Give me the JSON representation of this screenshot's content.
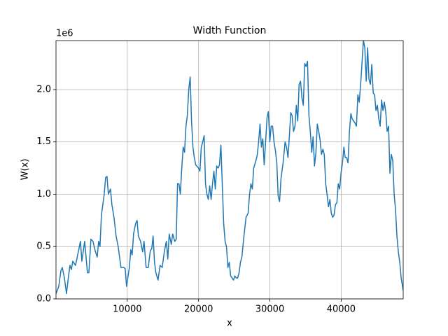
{
  "chart_data": {
    "type": "line",
    "title": "Width Function",
    "x_label": "x",
    "y_label": "W(x)",
    "y_offset_label": "1e6",
    "x": [
      0,
      390,
      690,
      880,
      1180,
      1470,
      1760,
      1960,
      2160,
      2350,
      2740,
      3040,
      3430,
      3630,
      4020,
      4410,
      4610,
      4900,
      5190,
      5490,
      5780,
      5980,
      6170,
      6370,
      6760,
      6960,
      7150,
      7350,
      7640,
      7840,
      8130,
      8430,
      8720,
      9110,
      9510,
      9700,
      9900,
      10290,
      10490,
      10680,
      10880,
      11170,
      11370,
      11560,
      11860,
      12150,
      12350,
      12640,
      12940,
      13230,
      13430,
      13620,
      13820,
      14010,
      14310,
      14600,
      14900,
      15190,
      15480,
      15680,
      15880,
      16170,
      16370,
      16660,
      16860,
      17050,
      17250,
      17440,
      17640,
      17840,
      18030,
      18230,
      18420,
      18620,
      18820,
      19010,
      19210,
      19400,
      19600,
      19990,
      20190,
      20380,
      20580,
      20780,
      20970,
      21170,
      21360,
      21560,
      21760,
      21950,
      22150,
      22340,
      22540,
      22740,
      22930,
      23130,
      23320,
      23520,
      23720,
      23910,
      24110,
      24300,
      24500,
      24700,
      24890,
      25090,
      25280,
      25480,
      25680,
      25870,
      26070,
      26360,
      26660,
      26950,
      27150,
      27340,
      27540,
      27730,
      28030,
      28220,
      28420,
      28620,
      28810,
      29010,
      29200,
      29400,
      29600,
      29790,
      29990,
      30180,
      30380,
      30580,
      30770,
      30970,
      31160,
      31360,
      31560,
      31850,
      32140,
      32340,
      32540,
      32730,
      32930,
      33120,
      33320,
      33520,
      33710,
      33910,
      34100,
      34300,
      34500,
      34690,
      34890,
      35080,
      35280,
      35480,
      35670,
      35870,
      36060,
      36260,
      36460,
      36650,
      36850,
      37040,
      37240,
      37440,
      37630,
      37830,
      38020,
      38220,
      38420,
      38610,
      38810,
      39000,
      39200,
      39400,
      39590,
      39790,
      39980,
      40180,
      40380,
      40570,
      40770,
      40960,
      41160,
      41360,
      41550,
      41750,
      41940,
      42140,
      42340,
      42530,
      42730,
      42920,
      43120,
      43320,
      43510,
      43710,
      43900,
      44100,
      44300,
      44490,
      44690,
      44880,
      45080,
      45280,
      45470,
      45670,
      45860,
      46060,
      46260,
      46450,
      46650,
      46840,
      47040,
      47240,
      47430,
      47630,
      47820,
      48020,
      48220,
      48410,
      48610,
      48700
    ],
    "series": [
      {
        "name": "W(x)",
        "color": "#1f77b4",
        "values": [
          50000,
          120000,
          270000,
          300000,
          200000,
          50000,
          220000,
          320000,
          280000,
          360000,
          320000,
          420000,
          550000,
          360000,
          550000,
          250000,
          250000,
          570000,
          550000,
          460000,
          400000,
          550000,
          500000,
          800000,
          1000000,
          1160000,
          1170000,
          1000000,
          1050000,
          900000,
          780000,
          600000,
          500000,
          300000,
          300000,
          290000,
          120000,
          300000,
          470000,
          420000,
          620000,
          720000,
          750000,
          600000,
          550000,
          450000,
          550000,
          300000,
          300000,
          460000,
          480000,
          600000,
          350000,
          250000,
          180000,
          320000,
          300000,
          450000,
          550000,
          380000,
          620000,
          520000,
          620000,
          550000,
          570000,
          1100000,
          1100000,
          1000000,
          1250000,
          1450000,
          1400000,
          1650000,
          1750000,
          2000000,
          2120000,
          1700000,
          1450000,
          1350000,
          1280000,
          1250000,
          1220000,
          1450000,
          1500000,
          1560000,
          1100000,
          1000000,
          950000,
          1080000,
          950000,
          1100000,
          1220000,
          1050000,
          1270000,
          1250000,
          1280000,
          1470000,
          1100000,
          720000,
          550000,
          500000,
          300000,
          350000,
          220000,
          200000,
          180000,
          220000,
          200000,
          200000,
          250000,
          350000,
          400000,
          600000,
          780000,
          820000,
          1000000,
          1100000,
          1050000,
          1250000,
          1320000,
          1370000,
          1500000,
          1670000,
          1450000,
          1530000,
          1280000,
          1500000,
          1730000,
          1790000,
          1500000,
          1650000,
          1650000,
          1500000,
          1420000,
          1300000,
          980000,
          930000,
          1150000,
          1300000,
          1500000,
          1450000,
          1350000,
          1550000,
          1780000,
          1750000,
          1600000,
          1650000,
          1850000,
          1700000,
          2050000,
          2080000,
          1920000,
          1850000,
          2250000,
          2220000,
          2270000,
          1750000,
          1600000,
          1400000,
          1550000,
          1270000,
          1400000,
          1670000,
          1600000,
          1520000,
          1380000,
          1430000,
          1380000,
          1100000,
          1000000,
          880000,
          950000,
          820000,
          780000,
          800000,
          900000,
          920000,
          1100000,
          1050000,
          1200000,
          1300000,
          1450000,
          1350000,
          1350000,
          1300000,
          1600000,
          1770000,
          1720000,
          1700000,
          1680000,
          1650000,
          1950000,
          1880000,
          2050000,
          2250000,
          2470000,
          2400000,
          2080000,
          2400000,
          2100000,
          2050000,
          2240000,
          1970000,
          1950000,
          1800000,
          1850000,
          1720000,
          1650000,
          1900000,
          1800000,
          1880000,
          1780000,
          1600000,
          1650000,
          1200000,
          1380000,
          1320000,
          1000000,
          850000,
          600000,
          450000,
          350000,
          200000,
          120000,
          80000
        ]
      }
    ],
    "xlim": [
      0,
      48700
    ],
    "ylim": [
      0,
      2468000
    ],
    "xticks": [
      10000,
      20000,
      30000,
      40000
    ],
    "yticks": [
      {
        "value": 0,
        "label": "0.0"
      },
      {
        "value": 500000,
        "label": "0.5"
      },
      {
        "value": 1000000,
        "label": "1.0"
      },
      {
        "value": 1500000,
        "label": "1.5"
      },
      {
        "value": 2000000,
        "label": "2.0"
      }
    ],
    "grid": true
  }
}
